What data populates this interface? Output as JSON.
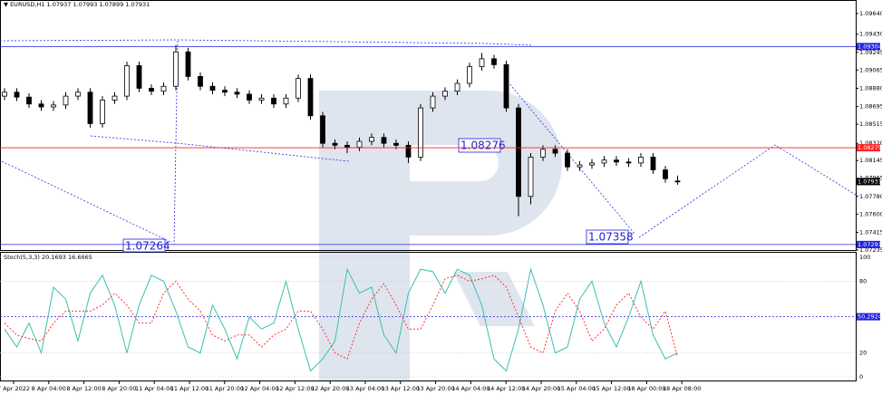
{
  "chart_data": [
    {
      "type": "candlestick",
      "title": "EURUSD,H1",
      "open": [
        1.088,
        1.0884,
        1.0879,
        1.0872,
        1.0869,
        1.0871,
        1.088,
        1.0884,
        1.0852,
        1.0876,
        1.088,
        1.0911,
        1.0888,
        1.0885,
        1.089,
        1.0925,
        1.09,
        1.089,
        1.0886,
        1.0884,
        1.0882,
        1.0876,
        1.0878,
        1.0872,
        1.0878,
        1.0898,
        1.086,
        1.0832,
        1.083,
        1.0828,
        1.0834,
        1.0838,
        1.0832,
        1.083,
        1.0818,
        1.0868,
        1.088,
        1.0885,
        1.0893,
        1.091,
        1.0918,
        1.0912,
        1.0868,
        1.0778,
        1.0818,
        1.0826,
        1.0822,
        1.0808,
        1.081,
        1.0812,
        1.0815,
        1.0813,
        1.0812,
        1.0818,
        1.0805,
        1.07937
      ],
      "high": [
        1.0888,
        1.0888,
        1.0883,
        1.0876,
        1.0875,
        1.0884,
        1.0888,
        1.0888,
        1.088,
        1.0884,
        1.0915,
        1.0915,
        1.0892,
        1.0894,
        1.0932,
        1.0929,
        1.0904,
        1.0894,
        1.089,
        1.0888,
        1.0886,
        1.0882,
        1.0882,
        1.0882,
        1.0902,
        1.0902,
        1.0864,
        1.0836,
        1.0834,
        1.0838,
        1.0842,
        1.0842,
        1.0836,
        1.0834,
        1.0872,
        1.0884,
        1.0889,
        1.0897,
        1.0914,
        1.0924,
        1.0922,
        1.0916,
        1.0872,
        1.0822,
        1.083,
        1.083,
        1.0826,
        1.0814,
        1.0816,
        1.0819,
        1.0819,
        1.0817,
        1.0822,
        1.0822,
        1.0809,
        1.07993
      ],
      "low": [
        1.0876,
        1.0875,
        1.0868,
        1.0865,
        1.0865,
        1.0867,
        1.0876,
        1.0848,
        1.0848,
        1.0872,
        1.0876,
        1.0884,
        1.0881,
        1.0881,
        1.0886,
        1.0896,
        1.0886,
        1.0882,
        1.088,
        1.0878,
        1.0872,
        1.0872,
        1.0868,
        1.0868,
        1.0874,
        1.0856,
        1.0828,
        1.0826,
        1.0822,
        1.0824,
        1.083,
        1.0828,
        1.0826,
        1.0812,
        1.0814,
        1.0864,
        1.0876,
        1.0881,
        1.0889,
        1.0906,
        1.0908,
        1.0864,
        1.0758,
        1.077,
        1.0814,
        1.0818,
        1.0804,
        1.0804,
        1.0806,
        1.0808,
        1.0809,
        1.0808,
        1.0808,
        1.0801,
        1.0792,
        1.07899
      ],
      "close": [
        1.0884,
        1.0879,
        1.0872,
        1.0869,
        1.0871,
        1.088,
        1.0884,
        1.0852,
        1.0876,
        1.088,
        1.0911,
        1.0888,
        1.0885,
        1.089,
        1.0925,
        1.09,
        1.089,
        1.0886,
        1.0884,
        1.0882,
        1.0876,
        1.0878,
        1.0872,
        1.0878,
        1.0898,
        1.086,
        1.0832,
        1.083,
        1.0828,
        1.0834,
        1.0838,
        1.0832,
        1.083,
        1.0818,
        1.0868,
        1.088,
        1.0885,
        1.0893,
        1.091,
        1.0918,
        1.0912,
        1.0868,
        1.0778,
        1.0818,
        1.0826,
        1.0822,
        1.0808,
        1.081,
        1.0812,
        1.0815,
        1.0813,
        1.0812,
        1.0818,
        1.0805,
        1.0796,
        1.07931
      ],
      "up_color": "#ffffff",
      "down_color": "#000000",
      "ylim": [
        1.0723,
        1.0975
      ],
      "yticks": [
        {
          "value": 1.0964,
          "label": "1.09640"
        },
        {
          "value": 1.0943,
          "label": "1.09430"
        },
        1.09245,
        {
          "value": 1.09065,
          "label": "1.09065"
        },
        {
          "value": 1.0888,
          "label": "1.08880"
        },
        1.08695,
        1.08515,
        {
          "value": 1.0832,
          "label": "1.08320"
        },
        1.08145,
        1.07965,
        {
          "value": 1.0778,
          "label": "1.07780"
        },
        {
          "value": 1.076,
          "label": "1.07600"
        },
        1.07415,
        1.07235
      ],
      "levels": [
        {
          "value": 1.09304,
          "color": "#2020e0"
        },
        {
          "value": 1.08275,
          "color": "#ff2020"
        },
        {
          "value": 1.07291,
          "color": "#2020e0"
        }
      ],
      "annotations": [
        "1.08276",
        "1.07264",
        "1.07358"
      ]
    },
    {
      "type": "line",
      "title": "Stoch(5,3,3)",
      "series": [
        {
          "color": "#3cbfae",
          "values": [
            40,
            25,
            45,
            20,
            75,
            65,
            30,
            70,
            85,
            60,
            20,
            60,
            85,
            80,
            55,
            25,
            20,
            60,
            40,
            15,
            50,
            40,
            45,
            80,
            40,
            5,
            15,
            30,
            90,
            70,
            75,
            35,
            20,
            70,
            90,
            88,
            70,
            90,
            85,
            60,
            15,
            5,
            40,
            90,
            60,
            20,
            25,
            65,
            80,
            45,
            25,
            50,
            80,
            35,
            15,
            20.1693
          ]
        },
        {
          "color": "#ff3030",
          "values": [
            45,
            35,
            32,
            30,
            45,
            55,
            55,
            55,
            60,
            70,
            60,
            45,
            45,
            70,
            80,
            65,
            55,
            35,
            30,
            35,
            35,
            25,
            35,
            40,
            55,
            55,
            40,
            20,
            15,
            45,
            65,
            78,
            60,
            40,
            40,
            60,
            82,
            85,
            80,
            82,
            85,
            75,
            50,
            25,
            20,
            55,
            70,
            55,
            30,
            40,
            60,
            70,
            50,
            40,
            55,
            16.6665
          ]
        }
      ],
      "ylim": [
        0,
        100
      ],
      "yticks": [
        100,
        80,
        20,
        0
      ],
      "levels": [
        {
          "value": 50.2924,
          "color": "#2020e0"
        }
      ],
      "x_labels": [
        "7 Apr 2022",
        "8 Apr 04:00",
        "8 Apr 12:00",
        "8 Apr 20:00",
        "11 Apr 04:00",
        "11 Apr 12:00",
        "11 Apr 20:00",
        "12 Apr 04:00",
        "12 Apr 12:00",
        "12 Apr 20:00",
        "13 Apr 04:00",
        "13 Apr 12:00",
        "13 Apr 20:00",
        "14 Apr 04:00",
        "14 Apr 12:00",
        "14 Apr 20:00",
        "15 Apr 04:00",
        "15 Apr 12:00",
        "18 Apr 00:00",
        "18 Apr 08:00"
      ]
    }
  ]
}
